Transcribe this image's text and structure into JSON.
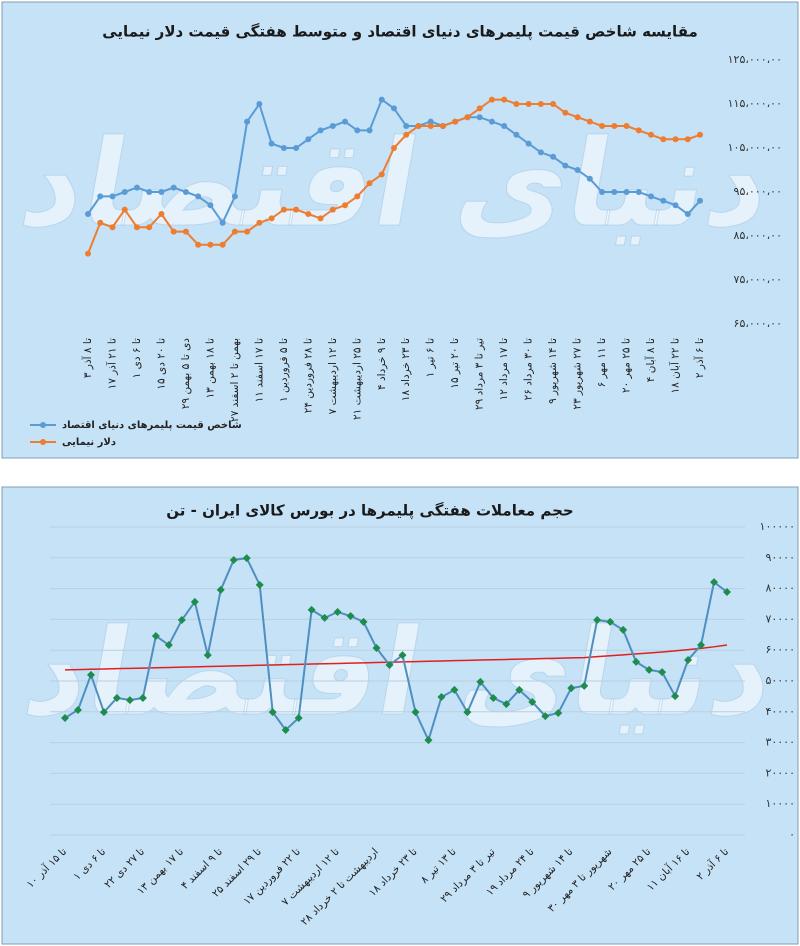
{
  "chart_data": [
    {
      "type": "line",
      "title": "مقایسه شاخص قیمت پلیمرهای دنیای اقتصاد و متوسط هفتگی قیمت دلار نیمایی",
      "watermark": "دنیای اقتصاد",
      "categories": [
        "۳ تا ۸ آذر",
        null,
        "۱۷ تا ۲۱ آذر",
        null,
        "۱ تا ۶ دی",
        null,
        "۱۵ تا ۲۰ دی",
        null,
        "۲۹ دی تا ۵ بهمن",
        null,
        "۱۳ تا ۱۸ بهمن",
        null,
        "۲۷ بهمن تا ۲ اسفند",
        null,
        "۱۱ تا ۱۷ اسفند",
        null,
        "۱ تا ۵ فروردین",
        null,
        "۲۴ تا ۲۸ فروردین",
        null,
        "۷ تا ۱۲ اردیبهشت",
        null,
        "۲۱ تا ۲۵ اردیبهشت",
        null,
        "۴ تا ۹ خرداد",
        null,
        "۱۸ تا ۲۳ خرداد",
        null,
        "۱ تا ۶ تیر",
        null,
        "۱۵ تا ۲۰ تیر",
        null,
        "۲۹ تیر تا ۳ مرداد",
        null,
        "۱۲ تا ۱۷ مرداد",
        null,
        "۲۶ تا ۳۰ مرداد",
        null,
        "۹ تا ۱۴ شهریور",
        null,
        "۲۳ تا ۲۷ شهریور",
        null,
        "۶ تا ۱۱ مهر",
        null,
        "۲۰ تا ۲۵ مهر",
        null,
        "۴ تا ۸ آبان",
        null,
        "۱۸ تا ۲۲ آبان",
        null,
        "۲ تا ۶ آذر"
      ],
      "series": [
        {
          "name": "شاخص قیمت پلیمرهای دنیای اقتصاد",
          "color": "#5b9bd5",
          "marker": "circle",
          "values": [
            9000000,
            9400000,
            9400000,
            9500000,
            9600000,
            9500000,
            9500000,
            9600000,
            9500000,
            9400000,
            9200000,
            8800000,
            9400000,
            11100000,
            11500000,
            10600000,
            10500000,
            10500000,
            10700000,
            10900000,
            11000000,
            11100000,
            10900000,
            10900000,
            11600000,
            11400000,
            11000000,
            11000000,
            11100000,
            11000000,
            11100000,
            11200000,
            11200000,
            11100000,
            11000000,
            10800000,
            10600000,
            10400000,
            10300000,
            10100000,
            10000000,
            9800000,
            9500000,
            9500000,
            9500000,
            9500000,
            9400000,
            9300000,
            9200000,
            9000000,
            9300000
          ]
        },
        {
          "name": "دلار نیمایی",
          "color": "#ed7d31",
          "marker": "circle",
          "values": [
            8100000,
            8800000,
            8700000,
            9100000,
            8700000,
            8700000,
            9000000,
            8600000,
            8600000,
            8300000,
            8300000,
            8300000,
            8600000,
            8600000,
            8800000,
            8900000,
            9100000,
            9100000,
            9000000,
            8900000,
            9100000,
            9200000,
            9400000,
            9700000,
            9900000,
            10500000,
            10800000,
            11000000,
            11000000,
            11000000,
            11100000,
            11200000,
            11400000,
            11600000,
            11600000,
            11500000,
            11500000,
            11500000,
            11500000,
            11300000,
            11200000,
            11100000,
            11000000,
            11000000,
            11000000,
            10900000,
            10800000,
            10700000,
            10700000,
            10700000,
            10800000
          ]
        }
      ],
      "ylim": [
        6500000,
        12500000
      ],
      "yticks": [
        {
          "value": 12500000,
          "label": "۱۲۵،۰۰۰،۰۰"
        },
        {
          "value": 11500000,
          "label": "۱۱۵،۰۰۰،۰۰"
        },
        {
          "value": 10500000,
          "label": "۱۰۵،۰۰۰،۰۰"
        },
        {
          "value": 9500000,
          "label": "۹۵،۰۰۰،۰۰"
        },
        {
          "value": 8500000,
          "label": "۸۵،۰۰۰،۰۰"
        },
        {
          "value": 7500000,
          "label": "۷۵،۰۰۰،۰۰"
        },
        {
          "value": 6500000,
          "label": "۶۵،۰۰۰،۰۰"
        }
      ],
      "grid": false,
      "legend": "bottom-left",
      "background": "#c6e2f7"
    },
    {
      "type": "line",
      "title": "حجم معاملات هفتگی پلیمرها در بورس کالای ایران - تن",
      "watermark": "دنیای اقتصاد",
      "categories": [
        "۱۰ تا ۱۵ آذر",
        null,
        null,
        "۱ تا ۶ دی",
        null,
        null,
        "۲۲ تا ۲۷ دی",
        null,
        null,
        "۱۳ تا ۱۷ بهمن",
        null,
        null,
        "۴ تا ۹ اسفند",
        null,
        null,
        "۲۵ تا ۲۹ اسفند",
        null,
        null,
        "۱۷ تا ۲۲ فروردین",
        null,
        null,
        "۷ تا ۱۲ اردیبهشت",
        null,
        null,
        "۲۸ اردیبهشت تا ۲ خرداد",
        null,
        null,
        "۱۸ تا ۲۳ خرداد",
        null,
        null,
        "۸ تا ۱۳ تیر",
        null,
        null,
        "۲۹ تیر تا ۳ مرداد",
        null,
        null,
        "۱۹ تا ۲۴ مرداد",
        null,
        null,
        "۹ تا ۱۴ شهریور",
        null,
        null,
        "۳۰ شهریور تا ۳ مهر",
        null,
        null,
        "۲۰ تا ۲۵ مهر",
        null,
        null,
        "۱۱ تا ۱۶ آبان",
        null,
        null,
        "۲ تا ۶ آذر"
      ],
      "series": [
        {
          "color": "#1e8c4c",
          "line_color": "#4f8fc0",
          "marker": "diamond",
          "values": [
            38000,
            40600,
            52000,
            39900,
            44500,
            43800,
            44500,
            64600,
            61700,
            69800,
            75700,
            58400,
            79600,
            89300,
            89900,
            81200,
            39900,
            34100,
            38000,
            73100,
            70500,
            72400,
            71100,
            69200,
            60700,
            55200,
            58400,
            39900,
            30800,
            44800,
            47100,
            39900,
            49700,
            44500,
            42500,
            47100,
            43200,
            38600,
            39600,
            47700,
            48400,
            69800,
            69200,
            66600,
            56200,
            53600,
            52900,
            45100,
            56800,
            61700,
            82100,
            78900
          ]
        }
      ],
      "trendline": {
        "color": "#e02020",
        "values": [
          53600,
          53700,
          53800,
          53900,
          54000,
          54100,
          54200,
          54300,
          54400,
          54500,
          54600,
          54700,
          54800,
          54900,
          55000,
          55100,
          55200,
          55300,
          55400,
          55500,
          55600,
          55700,
          55800,
          55900,
          56000,
          56100,
          56200,
          56300,
          56400,
          56500,
          56600,
          56700,
          56800,
          56900,
          57000,
          57100,
          57200,
          57300,
          57400,
          57500,
          57600,
          57900,
          58200,
          58500,
          58800,
          59100,
          59400,
          59800,
          60200,
          60600,
          61100,
          61700
        ]
      },
      "ylim": [
        0,
        100000
      ],
      "yticks": [
        {
          "value": 100000,
          "label": "۱۰۰۰۰۰"
        },
        {
          "value": 90000,
          "label": "۹۰۰۰۰"
        },
        {
          "value": 80000,
          "label": "۸۰۰۰۰"
        },
        {
          "value": 70000,
          "label": "۷۰۰۰۰"
        },
        {
          "value": 60000,
          "label": "۶۰۰۰۰"
        },
        {
          "value": 50000,
          "label": "۵۰۰۰۰"
        },
        {
          "value": 40000,
          "label": "۴۰۰۰۰"
        },
        {
          "value": 30000,
          "label": "۳۰۰۰۰"
        },
        {
          "value": 20000,
          "label": "۲۰۰۰۰"
        },
        {
          "value": 10000,
          "label": "۱۰۰۰۰"
        },
        {
          "value": 0,
          "label": "۰"
        }
      ],
      "grid": true,
      "background": "#c6e2f7"
    }
  ]
}
